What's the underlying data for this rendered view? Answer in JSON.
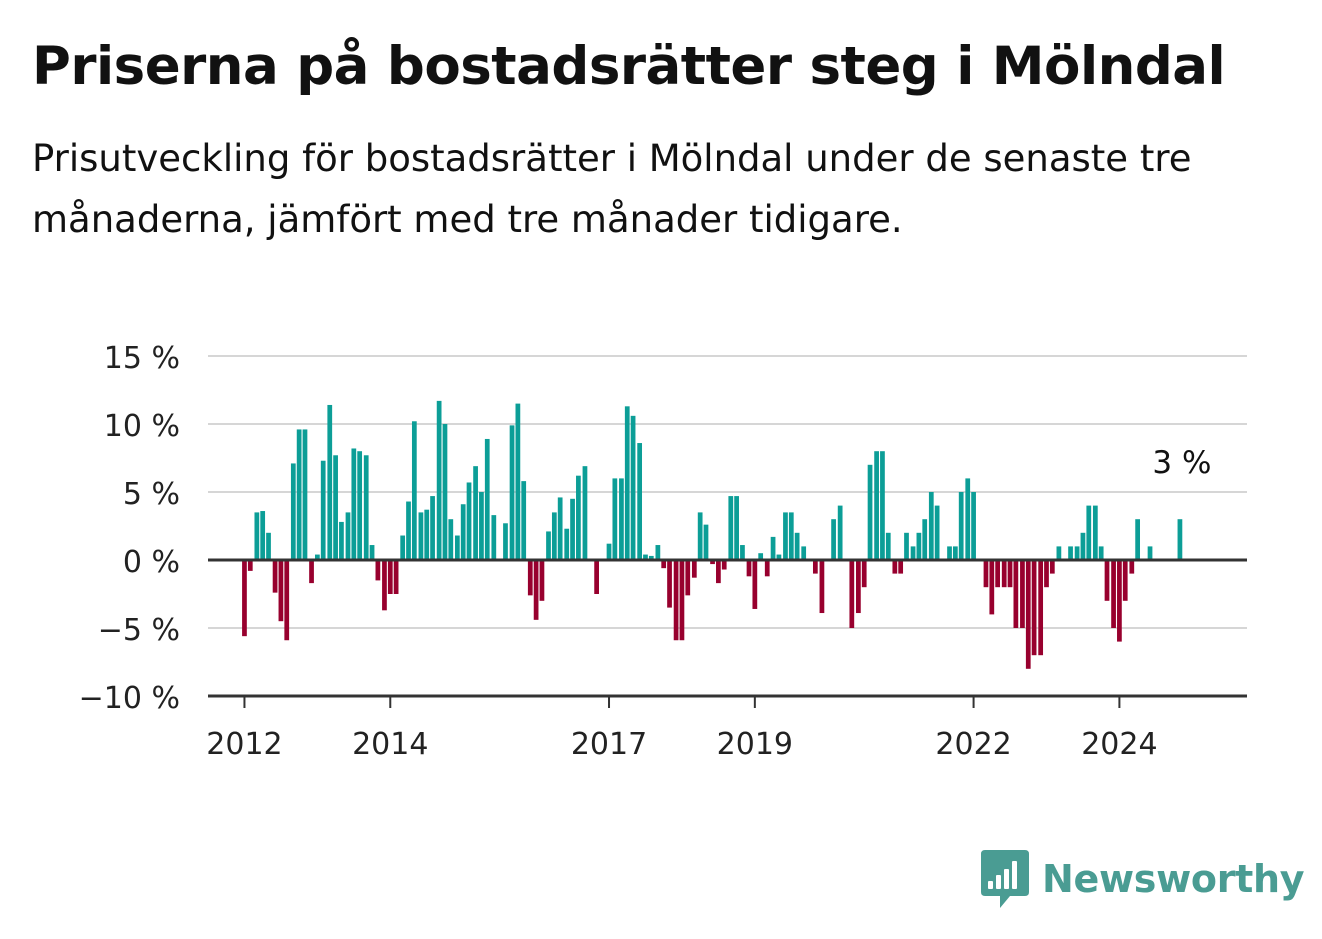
{
  "chart_data": {
    "type": "bar",
    "title": "Priserna på bostadsrätter steg i Mölndal",
    "subtitle": "Prisutveckling för bostadsrätter i Mölndal under de senaste tre månaderna, jämfört med tre månader tidigare.",
    "y_unit_suffix": " %",
    "ylim": [
      -10,
      15
    ],
    "yticks": [
      15,
      10,
      5,
      0,
      -5,
      -10
    ],
    "ytick_labels": [
      "15 %",
      "10 %",
      "5 %",
      "0 %",
      "−5 %",
      "−10 %"
    ],
    "xlim": [
      2011.5,
      2025.75
    ],
    "xticks": [
      2012,
      2014,
      2017,
      2019,
      2022,
      2024
    ],
    "xtick_labels": [
      "2012",
      "2014",
      "2017",
      "2019",
      "2022",
      "2024"
    ],
    "grid": true,
    "annotation": {
      "text": "3 %",
      "x": 2024.83,
      "y": 3
    },
    "colors": {
      "positive": "#0c9e97",
      "negative": "#98002e",
      "grid": "#d6d6d6",
      "axis": "#333333"
    },
    "x": [
      2012.0,
      2012.08,
      2012.17,
      2012.25,
      2012.33,
      2012.42,
      2012.5,
      2012.58,
      2012.67,
      2012.75,
      2012.83,
      2012.92,
      2013.0,
      2013.08,
      2013.17,
      2013.25,
      2013.33,
      2013.42,
      2013.5,
      2013.58,
      2013.67,
      2013.75,
      2013.83,
      2013.92,
      2014.0,
      2014.08,
      2014.17,
      2014.25,
      2014.33,
      2014.42,
      2014.5,
      2014.58,
      2014.67,
      2014.75,
      2014.83,
      2014.92,
      2015.0,
      2015.08,
      2015.17,
      2015.25,
      2015.33,
      2015.42,
      2015.5,
      2015.58,
      2015.67,
      2015.75,
      2015.83,
      2015.92,
      2016.0,
      2016.08,
      2016.17,
      2016.25,
      2016.33,
      2016.42,
      2016.5,
      2016.58,
      2016.67,
      2016.75,
      2016.83,
      2016.92,
      2017.0,
      2017.08,
      2017.17,
      2017.25,
      2017.33,
      2017.42,
      2017.5,
      2017.58,
      2017.67,
      2017.75,
      2017.83,
      2017.92,
      2018.0,
      2018.08,
      2018.17,
      2018.25,
      2018.33,
      2018.42,
      2018.5,
      2018.58,
      2018.67,
      2018.75,
      2018.83,
      2018.92,
      2019.0,
      2019.08,
      2019.17,
      2019.25,
      2019.33,
      2019.42,
      2019.5,
      2019.58,
      2019.67,
      2019.75,
      2019.83,
      2019.92,
      2020.0,
      2020.08,
      2020.17,
      2020.25,
      2020.33,
      2020.42,
      2020.5,
      2020.58,
      2020.67,
      2020.75,
      2020.83,
      2020.92,
      2021.0,
      2021.08,
      2021.17,
      2021.25,
      2021.33,
      2021.42,
      2021.5,
      2021.58,
      2021.67,
      2021.75,
      2021.83,
      2021.92,
      2022.0,
      2022.08,
      2022.17,
      2022.25,
      2022.33,
      2022.42,
      2022.5,
      2022.58,
      2022.67,
      2022.75,
      2022.83,
      2022.92,
      2023.0,
      2023.08,
      2023.17,
      2023.25,
      2023.33,
      2023.42,
      2023.5,
      2023.58,
      2023.67,
      2023.75,
      2023.83,
      2023.92,
      2024.0,
      2024.08,
      2024.17,
      2024.25,
      2024.33,
      2024.42,
      2024.5,
      2024.58,
      2024.67,
      2024.75,
      2024.83
    ],
    "values": [
      -5.6,
      -0.8,
      3.5,
      3.6,
      2.0,
      -2.4,
      -4.5,
      -5.9,
      7.1,
      9.6,
      9.6,
      -1.7,
      0.4,
      7.3,
      11.4,
      7.7,
      2.8,
      3.5,
      8.2,
      8.0,
      7.7,
      1.1,
      -1.5,
      -3.7,
      -2.5,
      -2.5,
      1.8,
      4.3,
      10.2,
      3.5,
      3.7,
      4.7,
      11.7,
      10.0,
      3.0,
      1.8,
      4.1,
      5.7,
      6.9,
      5.0,
      8.9,
      3.3,
      0.0,
      2.7,
      9.9,
      11.5,
      5.8,
      -2.6,
      -4.4,
      -3.0,
      2.1,
      3.5,
      4.6,
      2.3,
      4.5,
      6.2,
      6.9,
      0.0,
      -2.5,
      0.0,
      1.2,
      6.0,
      6.0,
      11.3,
      10.6,
      8.6,
      0.4,
      0.3,
      1.1,
      -0.6,
      -3.5,
      -5.9,
      -5.9,
      -2.6,
      -1.3,
      3.5,
      2.6,
      -0.3,
      -1.7,
      -0.7,
      4.7,
      4.7,
      1.1,
      -1.2,
      -3.6,
      0.5,
      -1.2,
      1.7,
      0.4,
      3.5,
      3.5,
      2.0,
      1.0,
      0.0,
      -1.0,
      -3.9,
      0.0,
      3.0,
      4.0,
      0.0,
      -5.0,
      -3.9,
      -2.0,
      7.0,
      8.0,
      8.0,
      2.0,
      -1.0,
      -1.0,
      2.0,
      1.0,
      2.0,
      3.0,
      5.0,
      4.0,
      0.0,
      1.0,
      1.0,
      5.0,
      6.0,
      5.0,
      0.0,
      -2.0,
      -4.0,
      -2.0,
      -2.0,
      -2.0,
      -5.0,
      -5.0,
      -8.0,
      -7.0,
      -7.0,
      -2.0,
      -1.0,
      1.0,
      0.0,
      1.0,
      1.0,
      2.0,
      4.0,
      4.0,
      1.0,
      -3.0,
      -5.0,
      -6.0,
      -3.0,
      -1.0,
      3.0,
      0.0,
      1.0,
      0.0,
      0.0,
      0.0,
      0.0,
      3.0
    ]
  },
  "brand": {
    "name": "Newsworthy",
    "color": "#4a9c93"
  }
}
